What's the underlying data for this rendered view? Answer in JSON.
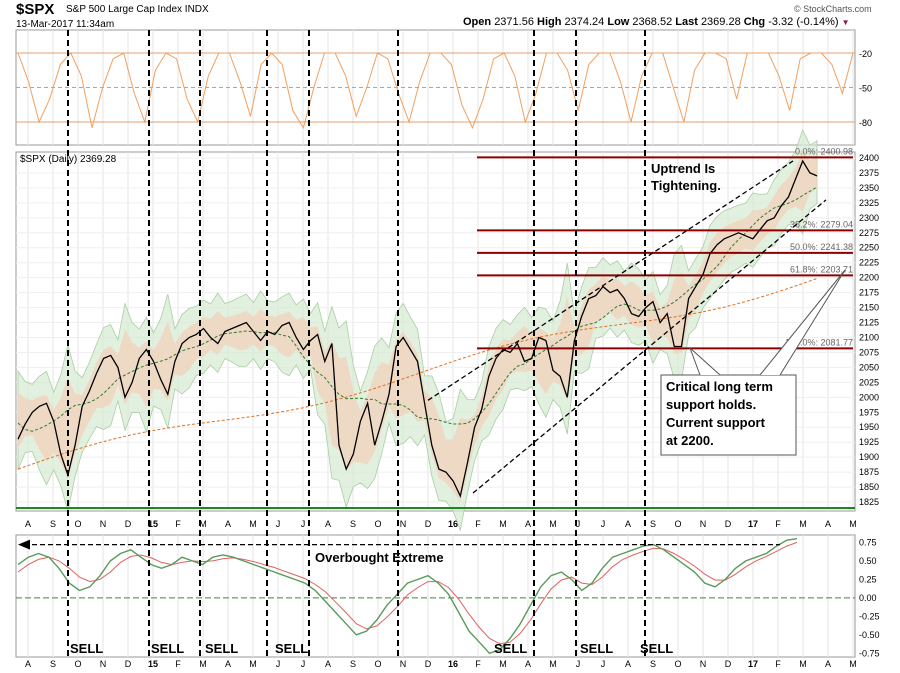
{
  "header": {
    "symbol": "$SPX",
    "name": "S&P 500 Large Cap Index",
    "exchange": "INDX",
    "timestamp": "13-Mar-2017 11:34am",
    "open_label": "Open",
    "open": "2371.56",
    "high_label": "High",
    "high": "2374.24",
    "low_label": "Low",
    "low": "2368.52",
    "last_label": "Last",
    "last": "2369.28",
    "chg_label": "Chg",
    "chg": "-3.32 (-0.14%)",
    "chg_marker": "▼",
    "watermark": "© StockCharts.com"
  },
  "colors": {
    "price": "#000000",
    "bollinger_fill": "#d6ead2",
    "inner_band_fill": "#f0d3bd",
    "ma_short": "#2e7d32",
    "ma_long": "#e07020",
    "support_line": "#8b0000",
    "baseline_green": "#1a8a1a",
    "rsi": "#f0a060",
    "macd": "#5a9a5a",
    "signal": "#e06060",
    "annotation": "#000000"
  },
  "chart_data": [
    {
      "type": "line",
      "panel": "rsi",
      "label_text": "",
      "y_ticks": [
        -20,
        -50,
        -80
      ],
      "ylim": [
        -100,
        0
      ],
      "series": [
        {
          "values": [
            -20,
            -45,
            -80,
            -60,
            -30,
            -20,
            -40,
            -85,
            -50,
            -25,
            -20,
            -55,
            -80,
            -35,
            -20,
            -25,
            -60,
            -80,
            -40,
            -20,
            -20,
            -45,
            -75,
            -30,
            -20,
            -30,
            -70,
            -85,
            -50,
            -20,
            -20,
            -40,
            -75,
            -50,
            -20,
            -25,
            -55,
            -80,
            -45,
            -20,
            -20,
            -30,
            -65,
            -85,
            -60,
            -25,
            -20,
            -40,
            -80,
            -55,
            -20,
            -20,
            -35,
            -70,
            -30,
            -20,
            -20,
            -45,
            -80,
            -40,
            -20,
            -20,
            -50,
            -80,
            -35,
            -20,
            -20,
            -25,
            -60,
            -20,
            -20,
            -20,
            -40,
            -70,
            -25,
            -20,
            -20,
            -30,
            -55,
            -20
          ]
        }
      ]
    },
    {
      "type": "line",
      "panel": "price",
      "title": "$SPX (Daily) 2369.28",
      "ylim": [
        1810,
        2410
      ],
      "y_ticks": [
        1825,
        1850,
        1875,
        1900,
        1925,
        1950,
        1975,
        2000,
        2025,
        2050,
        2075,
        2100,
        2125,
        2150,
        2175,
        2200,
        2225,
        2250,
        2275,
        2300,
        2325,
        2350,
        2375,
        2400
      ],
      "x_month_labels": [
        "A",
        "S",
        "O",
        "N",
        "D",
        "15",
        "F",
        "M",
        "A",
        "M",
        "J",
        "J",
        "A",
        "S",
        "O",
        "N",
        "D",
        "16",
        "F",
        "M",
        "A",
        "M",
        "J",
        "J",
        "A",
        "S",
        "O",
        "N",
        "D",
        "17",
        "F",
        "M",
        "A",
        "M"
      ],
      "series": [
        {
          "name": "$SPX",
          "x_start": "2014-08-01",
          "step": "weekly",
          "values": [
            1930,
            1955,
            1975,
            1985,
            1990,
            1960,
            1905,
            1870,
            1920,
            1985,
            2010,
            2040,
            2065,
            2070,
            2050,
            2000,
            2025,
            2065,
            2080,
            2060,
            2030,
            2005,
            2060,
            2090,
            2100,
            2105,
            2115,
            2100,
            2090,
            2110,
            2115,
            2120,
            2125,
            2110,
            2095,
            2110,
            2105,
            2120,
            2125,
            2100,
            2080,
            2095,
            2105,
            2060,
            2090,
            1920,
            1880,
            1905,
            1960,
            1990,
            1920,
            1960,
            2005,
            2085,
            2100,
            2080,
            2060,
            1990,
            1920,
            1880,
            1875,
            1860,
            1835,
            1890,
            1950,
            1980,
            2035,
            2065,
            2080,
            2075,
            2090,
            2060,
            2065,
            2100,
            2095,
            2045,
            2035,
            2000,
            2095,
            2135,
            2165,
            2170,
            2185,
            2175,
            2180,
            2165,
            2140,
            2135,
            2150,
            2160,
            2125,
            2140,
            2085,
            2085,
            2165,
            2185,
            2205,
            2240,
            2255,
            2265,
            2270,
            2275,
            2270,
            2265,
            2280,
            2295,
            2300,
            2320,
            2335,
            2365,
            2395,
            2375,
            2370
          ]
        }
      ],
      "fib_levels": [
        {
          "label": "0.0%: 2400.98",
          "value": 2400.98
        },
        {
          "label": "38.2%: 2279.04",
          "value": 2279.04
        },
        {
          "label": "50.0%: 2241.38",
          "value": 2241.38
        },
        {
          "label": "61.8%: 2203.71",
          "value": 2203.71
        },
        {
          "label": "100.0%: 2081.77",
          "value": 2081.77
        }
      ],
      "baseline": 1815,
      "annotations": [
        {
          "id": "uptrend",
          "line1": "Uptrend Is",
          "line2": "Tightening."
        },
        {
          "id": "support",
          "line1": "Critical long term",
          "line2": "support holds.",
          "line3": "Current support",
          "line4": "at 2200."
        }
      ]
    },
    {
      "type": "line",
      "panel": "oscillator",
      "ylim": [
        -0.8,
        0.85
      ],
      "y_ticks": [
        "0.75",
        "0.50",
        "0.25",
        "0.00",
        "-0.25",
        "-0.50",
        "-0.75"
      ],
      "annotation": "Overbought Extreme",
      "sell_labels": [
        "SELL",
        "SELL",
        "SELL",
        "SELL",
        "SELL",
        "SELL",
        "SELL"
      ],
      "series": [
        {
          "name": "oscillator",
          "values": [
            0.45,
            0.55,
            0.6,
            0.55,
            0.4,
            0.2,
            0.1,
            0.15,
            0.3,
            0.5,
            0.6,
            0.65,
            0.55,
            0.45,
            0.4,
            0.45,
            0.55,
            0.5,
            0.45,
            0.55,
            0.58,
            0.55,
            0.5,
            0.45,
            0.4,
            0.35,
            0.3,
            0.25,
            0.2,
            0.1,
            -0.05,
            -0.2,
            -0.35,
            -0.5,
            -0.45,
            -0.3,
            -0.1,
            0.05,
            0.2,
            0.25,
            0.3,
            0.2,
            0.05,
            -0.2,
            -0.45,
            -0.6,
            -0.75,
            -0.7,
            -0.55,
            -0.35,
            -0.1,
            0.15,
            0.3,
            0.35,
            0.25,
            0.1,
            0.2,
            0.4,
            0.55,
            0.6,
            0.65,
            0.7,
            0.72,
            0.65,
            0.55,
            0.45,
            0.35,
            0.2,
            0.15,
            0.25,
            0.4,
            0.5,
            0.55,
            0.6,
            0.7,
            0.78,
            0.8
          ]
        },
        {
          "name": "signal",
          "values": [
            0.35,
            0.45,
            0.52,
            0.55,
            0.5,
            0.4,
            0.28,
            0.22,
            0.25,
            0.35,
            0.48,
            0.56,
            0.58,
            0.54,
            0.48,
            0.45,
            0.48,
            0.5,
            0.49,
            0.5,
            0.53,
            0.54,
            0.52,
            0.49,
            0.45,
            0.41,
            0.36,
            0.31,
            0.26,
            0.18,
            0.08,
            -0.06,
            -0.2,
            -0.35,
            -0.42,
            -0.38,
            -0.26,
            -0.12,
            0.04,
            0.14,
            0.22,
            0.22,
            0.14,
            -0.02,
            -0.22,
            -0.4,
            -0.55,
            -0.62,
            -0.6,
            -0.48,
            -0.3,
            -0.08,
            0.12,
            0.24,
            0.28,
            0.2,
            0.18,
            0.28,
            0.42,
            0.52,
            0.58,
            0.63,
            0.67,
            0.66,
            0.6,
            0.52,
            0.43,
            0.32,
            0.24,
            0.24,
            0.32,
            0.42,
            0.5,
            0.56,
            0.63,
            0.7,
            0.75
          ]
        }
      ]
    }
  ]
}
